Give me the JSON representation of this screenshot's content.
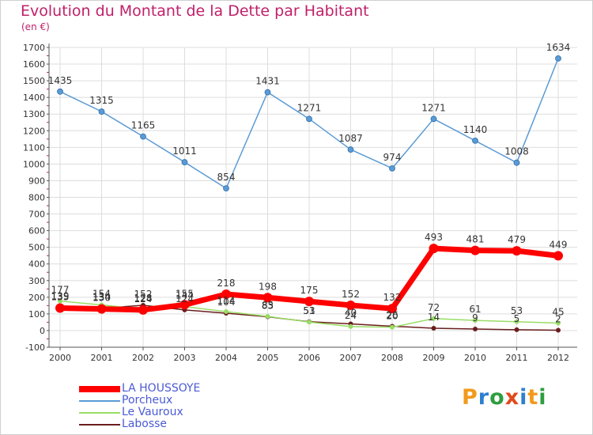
{
  "title": "Evolution du Montant de la Dette par Habitant",
  "unit": "(en €)",
  "brand": {
    "text": "Proxiti",
    "colors": [
      "#f29a1c",
      "#2e7fd0",
      "#2e9d3f",
      "#e04a1c",
      "#2e7fd0",
      "#f29a1c",
      "#2e9d3f"
    ]
  },
  "chart_data": {
    "type": "line",
    "x": [
      2000,
      2001,
      2002,
      2003,
      2004,
      2005,
      2006,
      2007,
      2008,
      2009,
      2010,
      2011,
      2012
    ],
    "ylim": [
      -100,
      1700
    ],
    "yticks": [
      -100,
      0,
      100,
      200,
      300,
      400,
      500,
      600,
      700,
      800,
      900,
      1000,
      1100,
      1200,
      1300,
      1400,
      1500,
      1600,
      1700
    ],
    "grid": true,
    "legend_position": "bottom-left",
    "series": [
      {
        "name": "LA HOUSSOYE",
        "color": "#ff0000",
        "values": [
          135,
          130,
          124,
          155,
          218,
          198,
          175,
          152,
          132,
          493,
          481,
          479,
          449
        ]
      },
      {
        "name": "Porcheux",
        "color": "#5b9bd5",
        "values": [
          1435,
          1315,
          1165,
          1011,
          854,
          1431,
          1271,
          1087,
          974,
          1271,
          1140,
          1008,
          1634
        ]
      },
      {
        "name": "Le Vauroux",
        "color": "#99dd66",
        "values": [
          177,
          154,
          128,
          144,
          114,
          85,
          51,
          24,
          20,
          72,
          61,
          53,
          45
        ]
      },
      {
        "name": "Labosse",
        "color": "#6b1e1e",
        "values": [
          139,
          134,
          152,
          124,
          104,
          83,
          53,
          40,
          26,
          14,
          9,
          5,
          2
        ]
      }
    ]
  }
}
